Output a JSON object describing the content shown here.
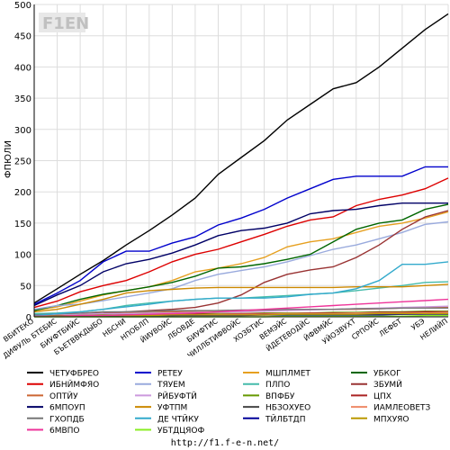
{
  "chart_data": {
    "type": "line",
    "ylabel": "ФПЮЛИ",
    "ylim": [
      0,
      500
    ],
    "yticks": [
      0,
      50,
      100,
      150,
      200,
      250,
      300,
      350,
      400,
      450,
      500
    ],
    "grid": true,
    "legend_position": "bottom",
    "x": [
      "ВБИТЕКО",
      "ДИФУЛЬ БТЕБИС",
      "БИУФТБИЙС",
      "БЪЕТВВКДЫБО",
      "НБСНИ",
      "НПОБЛП",
      "ЙИУВОЙС",
      "ЛБОВДЕ",
      "БИУФТИС",
      "ЧИЛЛБТИФВОЙС",
      "ХОЗБТИС",
      "ВЕМЭЙС",
      "ЙДЕТЕВОДЙС",
      "ЙФВМЙС",
      "УЙОЗВУХТ",
      "СРПОЙС",
      "ЛЕФБТ",
      "УБЭ",
      "НЕЛИЙП"
    ],
    "series": [
      {
        "name": "ЧЕТУФБРЕО",
        "color": "#000000",
        "values": [
          22,
          45,
          68,
          90,
          115,
          138,
          163,
          190,
          228,
          255,
          282,
          315,
          340,
          365,
          375,
          400,
          430,
          460,
          485
        ]
      },
      {
        "name": "РЕТЕУ",
        "color": "#0000cc",
        "values": [
          20,
          38,
          58,
          88,
          105,
          105,
          118,
          128,
          147,
          158,
          172,
          190,
          205,
          220,
          225,
          225,
          225,
          240,
          240
        ]
      },
      {
        "name": "МШПЛМЕТ",
        "color": "#e6a020",
        "values": [
          10,
          16,
          25,
          35,
          42,
          48,
          58,
          72,
          78,
          85,
          95,
          112,
          120,
          125,
          135,
          145,
          150,
          158,
          168
        ]
      },
      {
        "name": "УБКОГ",
        "color": "#006600",
        "values": [
          10,
          18,
          28,
          36,
          42,
          48,
          55,
          65,
          78,
          80,
          85,
          92,
          100,
          120,
          140,
          150,
          155,
          172,
          180
        ]
      },
      {
        "name": "ИБНЙМФЯО",
        "color": "#dd0000",
        "values": [
          15,
          25,
          40,
          50,
          58,
          72,
          88,
          100,
          108,
          120,
          132,
          145,
          155,
          160,
          178,
          188,
          195,
          205,
          222
        ]
      },
      {
        "name": "ТЯУЕМ",
        "color": "#99aadd",
        "values": [
          12,
          18,
          20,
          26,
          32,
          38,
          45,
          58,
          68,
          74,
          80,
          88,
          98,
          108,
          115,
          125,
          135,
          148,
          152
        ]
      },
      {
        "name": "ПЛПО",
        "color": "#44bbaa",
        "values": [
          5,
          6,
          8,
          12,
          18,
          22,
          25,
          28,
          30,
          30,
          32,
          34,
          36,
          38,
          42,
          46,
          50,
          55,
          56
        ]
      },
      {
        "name": "ЗБУМЙ",
        "color": "#993333",
        "values": [
          3,
          4,
          5,
          6,
          8,
          10,
          12,
          15,
          22,
          35,
          55,
          68,
          75,
          80,
          95,
          115,
          140,
          160,
          170
        ]
      },
      {
        "name": "ОПТЙУ",
        "color": "#cc6633",
        "values": [
          2,
          3,
          4,
          5,
          6,
          7,
          8,
          9,
          10,
          10,
          11,
          12,
          12,
          12,
          12,
          13,
          14,
          15,
          15
        ]
      },
      {
        "name": "РЙБУФТЙ",
        "color": "#cc99dd",
        "values": [
          2,
          3,
          4,
          5,
          5,
          6,
          6,
          7,
          7,
          8,
          9,
          10,
          11,
          12,
          13,
          14,
          15,
          16,
          17
        ]
      },
      {
        "name": "ВПФБУ",
        "color": "#669900",
        "values": [
          1,
          2,
          2,
          3,
          3,
          4,
          4,
          5,
          5,
          5,
          6,
          6,
          6,
          7,
          7,
          8,
          8,
          9,
          9
        ]
      },
      {
        "name": "ЦПХ",
        "color": "#aa2222",
        "values": [
          1,
          1,
          2,
          2,
          3,
          3,
          3,
          4,
          4,
          5,
          5,
          5,
          6,
          6,
          6,
          7,
          7,
          8,
          8
        ]
      },
      {
        "name": "6МПОУП",
        "color": "#000066",
        "values": [
          18,
          35,
          50,
          72,
          85,
          92,
          102,
          115,
          130,
          138,
          142,
          150,
          165,
          170,
          172,
          178,
          182,
          182,
          182
        ]
      },
      {
        "name": "УФТПМ",
        "color": "#cc8800",
        "values": [
          8,
          12,
          20,
          28,
          38,
          42,
          44,
          46,
          47,
          47,
          47,
          47,
          47,
          47,
          48,
          48,
          48,
          50,
          52
        ]
      },
      {
        "name": "НБЗОХУЕО",
        "color": "#444444",
        "values": [
          1,
          1,
          1,
          2,
          2,
          2,
          2,
          3,
          3,
          3,
          3,
          3,
          4,
          4,
          4,
          4,
          4,
          5,
          5
        ]
      },
      {
        "name": "ИАМЛЕОВЕТЗ",
        "color": "#ee8866",
        "values": [
          1,
          1,
          2,
          2,
          2,
          3,
          3,
          3,
          4,
          4,
          4,
          5,
          5,
          5,
          6,
          6,
          6,
          6,
          7
        ]
      },
      {
        "name": "ГХОПДБ",
        "color": "#777777",
        "values": [
          3,
          5,
          6,
          8,
          8,
          9,
          10,
          10,
          10,
          11,
          11,
          12,
          12,
          12,
          13,
          13,
          14,
          14,
          14
        ]
      },
      {
        "name": "ДЕ ЧТЙКУ",
        "color": "#33aacc",
        "values": [
          2,
          5,
          8,
          12,
          16,
          20,
          25,
          28,
          30,
          30,
          30,
          32,
          36,
          38,
          45,
          58,
          84,
          84,
          88
        ]
      },
      {
        "name": "ТЙЛБТДП",
        "color": "#000099",
        "values": [
          1,
          1,
          1,
          1,
          2,
          2,
          2,
          2,
          2,
          2,
          3,
          3,
          3,
          3,
          3,
          3,
          4,
          4,
          4
        ]
      },
      {
        "name": "МПХУЯО",
        "color": "#bb9900",
        "values": [
          1,
          1,
          2,
          2,
          2,
          2,
          3,
          3,
          3,
          3,
          3,
          4,
          4,
          4,
          4,
          5,
          5,
          5,
          5
        ]
      },
      {
        "name": "6МВПО",
        "color": "#ee3399",
        "values": [
          1,
          1,
          2,
          2,
          3,
          4,
          5,
          6,
          8,
          10,
          12,
          14,
          16,
          18,
          20,
          22,
          24,
          26,
          28
        ]
      },
      {
        "name": "УБТДЦЯОФ",
        "color": "#88ee22",
        "values": [
          0,
          0,
          0,
          0,
          0,
          0,
          0,
          0,
          0,
          0,
          0,
          1,
          1,
          1,
          1,
          1,
          1,
          2,
          2
        ]
      }
    ]
  },
  "logo": {
    "text": "F1EN"
  },
  "footer": {
    "url": "http://f1.f-e-n.net/"
  }
}
